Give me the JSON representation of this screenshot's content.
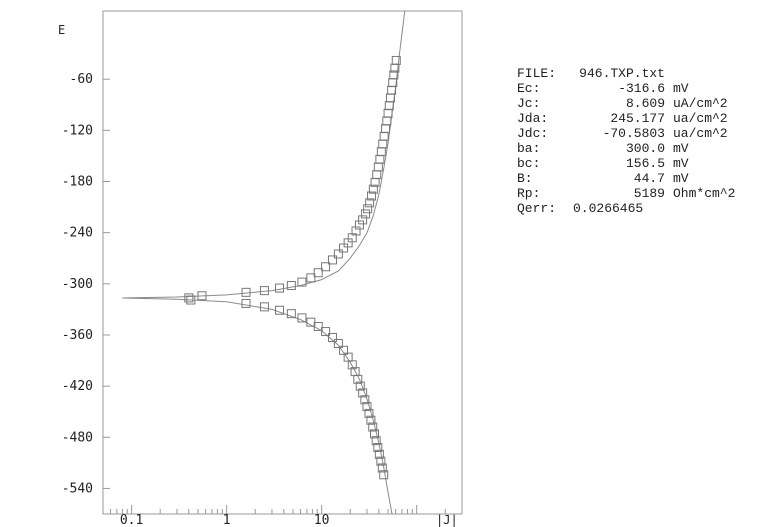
{
  "chart_data": {
    "type": "line",
    "ylabel": "E",
    "xlabel": "|J|",
    "x_scale": "log",
    "xlim": [
      0.05,
      300
    ],
    "ylim": [
      -570,
      20
    ],
    "yticks": [
      "-60",
      "-120",
      "-180",
      "-240",
      "-300",
      "-360",
      "-420",
      "-480",
      "-540"
    ],
    "xticks": [
      "0.1",
      "1",
      "10"
    ],
    "grid": false,
    "series": [
      {
        "type": "line",
        "points": [
          [
            0.08,
            -316.6
          ],
          [
            0.3,
            -315.5
          ],
          [
            1,
            -313
          ],
          [
            3,
            -308
          ],
          [
            6,
            -302
          ],
          [
            10,
            -295
          ],
          [
            15,
            -285
          ],
          [
            20,
            -270
          ],
          [
            25,
            -255
          ],
          [
            30,
            -240
          ],
          [
            35,
            -220
          ],
          [
            40,
            -195
          ],
          [
            45,
            -165
          ],
          [
            50,
            -135
          ],
          [
            55,
            -100
          ],
          [
            60,
            -70
          ],
          [
            66,
            -30
          ],
          [
            75,
            20
          ]
        ]
      },
      {
        "type": "line",
        "points": [
          [
            0.08,
            -316.6
          ],
          [
            0.3,
            -318
          ],
          [
            1,
            -321
          ],
          [
            3,
            -330
          ],
          [
            6,
            -342
          ],
          [
            10,
            -355
          ],
          [
            15,
            -372
          ],
          [
            20,
            -392
          ],
          [
            25,
            -412
          ],
          [
            30,
            -435
          ],
          [
            35,
            -460
          ],
          [
            40,
            -487
          ],
          [
            45,
            -515
          ],
          [
            50,
            -545
          ],
          [
            55,
            -570
          ]
        ]
      },
      {
        "type": "scatter",
        "marker": "square",
        "points": [
          [
            0.4,
            -316.5
          ],
          [
            0.55,
            -314
          ],
          [
            1.6,
            -310
          ],
          [
            2.5,
            -308
          ],
          [
            3.6,
            -305
          ],
          [
            4.8,
            -302
          ],
          [
            6.2,
            -298
          ],
          [
            7.7,
            -293
          ],
          [
            9.2,
            -287
          ],
          [
            11,
            -280
          ],
          [
            13,
            -272
          ],
          [
            15,
            -265
          ],
          [
            17,
            -258
          ],
          [
            19,
            -252
          ],
          [
            21,
            -246
          ],
          [
            23,
            -238
          ],
          [
            25,
            -231
          ],
          [
            27,
            -225
          ],
          [
            29,
            -218
          ],
          [
            30.5,
            -212
          ],
          [
            32,
            -205
          ],
          [
            33.5,
            -197
          ],
          [
            35,
            -189
          ],
          [
            36.5,
            -181
          ],
          [
            38,
            -172
          ],
          [
            39.5,
            -163
          ],
          [
            41,
            -154
          ],
          [
            42.5,
            -145
          ],
          [
            44,
            -136
          ],
          [
            45.5,
            -127
          ],
          [
            47,
            -118
          ],
          [
            48.5,
            -109
          ],
          [
            50,
            -100
          ],
          [
            51.5,
            -91
          ],
          [
            53,
            -82
          ],
          [
            54.5,
            -73
          ],
          [
            56,
            -64
          ],
          [
            57.5,
            -55
          ],
          [
            59,
            -47
          ],
          [
            61,
            -38
          ],
          [
            0.42,
            -319
          ],
          [
            1.6,
            -323
          ],
          [
            2.5,
            -327
          ],
          [
            3.6,
            -331
          ],
          [
            4.8,
            -335
          ],
          [
            6.2,
            -340
          ],
          [
            7.7,
            -345
          ],
          [
            9.2,
            -350
          ],
          [
            11,
            -356
          ],
          [
            13,
            -363
          ],
          [
            15,
            -370
          ],
          [
            17,
            -378
          ],
          [
            19,
            -386
          ],
          [
            21,
            -395
          ],
          [
            22.5,
            -403
          ],
          [
            24,
            -412
          ],
          [
            25.5,
            -420
          ],
          [
            27,
            -428
          ],
          [
            28.5,
            -436
          ],
          [
            30,
            -444
          ],
          [
            31.5,
            -452
          ],
          [
            33,
            -460
          ],
          [
            34.5,
            -468
          ],
          [
            36,
            -476
          ],
          [
            37.5,
            -484
          ],
          [
            39,
            -492
          ],
          [
            40.5,
            -500
          ],
          [
            42,
            -508
          ],
          [
            43.5,
            -516
          ],
          [
            45,
            -524
          ]
        ]
      }
    ]
  },
  "info": {
    "rows": [
      {
        "key": "FILE:",
        "value": "946.TXP.txt",
        "unit": ""
      },
      {
        "key": "Ec:",
        "value": "-316.6",
        "unit": "mV"
      },
      {
        "key": "Jc:",
        "value": "8.609",
        "unit": "uA/cm^2"
      },
      {
        "key": "Jda:",
        "value": "245.177",
        "unit": "ua/cm^2"
      },
      {
        "key": "Jdc:",
        "value": "-70.5803",
        "unit": "ua/cm^2"
      },
      {
        "key": "ba:",
        "value": "300.0",
        "unit": "mV"
      },
      {
        "key": "bc:",
        "value": "156.5",
        "unit": "mV"
      },
      {
        "key": "B:",
        "value": "44.7",
        "unit": "mV"
      },
      {
        "key": "Rp:",
        "value": "5189",
        "unit": "Ohm*cm^2"
      },
      {
        "key": "Qerr:",
        "value": "0.0266465",
        "unit": ""
      }
    ]
  },
  "colors": {
    "axis": "#999999",
    "curve": "#8a8a8a",
    "marker": "#777777",
    "text": "#222222"
  }
}
